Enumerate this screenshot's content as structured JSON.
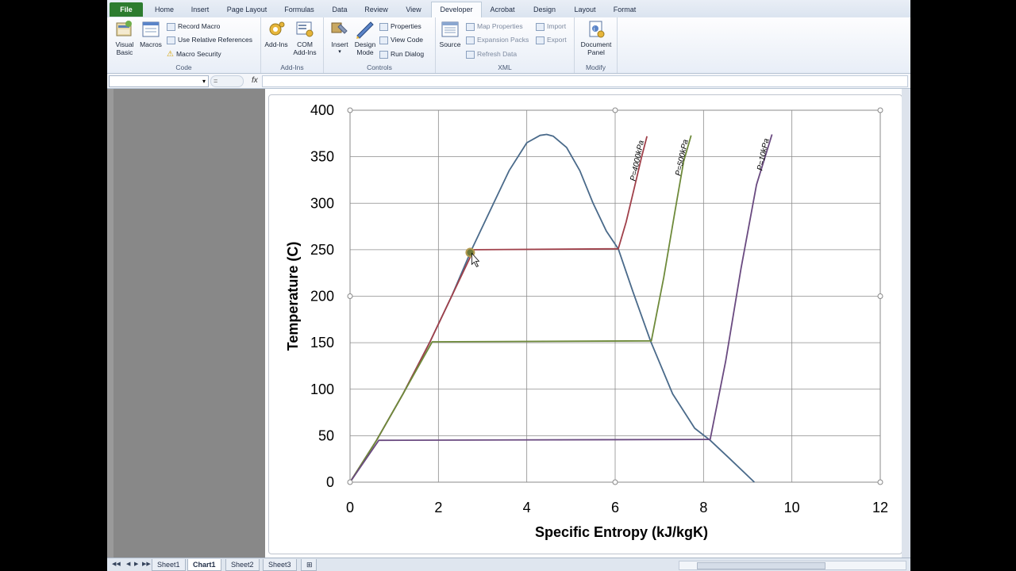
{
  "ribbon_tabs": [
    "File",
    "Home",
    "Insert",
    "Page Layout",
    "Formulas",
    "Data",
    "Review",
    "View",
    "Developer",
    "Acrobat",
    "Design",
    "Layout",
    "Format"
  ],
  "ribbon": {
    "code": {
      "label": "Code",
      "visual_basic": [
        "Visual",
        "Basic"
      ],
      "macros": "Macros",
      "record_macro": "Record Macro",
      "relative_refs": "Use Relative References",
      "macro_security": "Macro Security"
    },
    "addins": {
      "label": "Add-Ins",
      "addins_btn": "Add-Ins",
      "com_addins": [
        "COM",
        "Add-Ins"
      ]
    },
    "controls": {
      "label": "Controls",
      "insert": "Insert",
      "design_mode": [
        "Design",
        "Mode"
      ],
      "properties": "Properties",
      "view_code": "View Code",
      "run_dialog": "Run Dialog"
    },
    "xml": {
      "label": "XML",
      "source": "Source",
      "map_properties": "Map Properties",
      "expansion_packs": "Expansion Packs",
      "refresh_data": "Refresh Data",
      "import": "Import",
      "export": "Export"
    },
    "modify": {
      "label": "Modify",
      "document_panel": [
        "Document",
        "Panel"
      ]
    }
  },
  "formula_bar": {
    "name_box": "",
    "fx_oval": "=",
    "fx": "fx",
    "value": ""
  },
  "sheet_tabs": [
    "Sheet1",
    "Chart1",
    "Sheet2",
    "Sheet3"
  ],
  "active_sheet": "Chart1",
  "chart_data": {
    "type": "line",
    "title": "",
    "xlabel": "Specific Entropy (kJ/kgK)",
    "ylabel": "Temperature (C)",
    "xlim": [
      0,
      12
    ],
    "ylim": [
      0,
      400
    ],
    "xticks": [
      0,
      2,
      4,
      6,
      8,
      10,
      12
    ],
    "yticks": [
      0,
      50,
      100,
      150,
      200,
      250,
      300,
      350,
      400
    ],
    "grid": true,
    "series": [
      {
        "name": "",
        "color": "#4a6a8a",
        "x": [
          0,
          0.6,
          1.2,
          1.8,
          2.3,
          2.75,
          3.2,
          3.6,
          4.0,
          4.3,
          4.45,
          4.6,
          4.9,
          5.2,
          5.5,
          5.8,
          6.07,
          6.4,
          6.8,
          7.3,
          7.8,
          8.15,
          8.6,
          9.15
        ],
        "y": [
          0,
          45,
          95,
          150,
          200,
          250,
          295,
          335,
          365,
          373,
          374,
          372,
          360,
          335,
          300,
          270,
          251,
          205,
          152,
          95,
          58,
          45,
          25,
          0
        ]
      },
      {
        "name": "P=4000kPa",
        "color": "#a0404a",
        "x": [
          0,
          0.6,
          1.2,
          1.8,
          2.3,
          2.8,
          6.07,
          6.25,
          6.45,
          6.6,
          6.72
        ],
        "y": [
          0,
          45,
          95,
          150,
          200,
          250,
          251,
          280,
          320,
          350,
          372
        ]
      },
      {
        "name": "P=500kPa",
        "color": "#6e8a3a",
        "x": [
          0,
          0.6,
          1.2,
          1.86,
          6.82,
          7.1,
          7.35,
          7.55,
          7.72
        ],
        "y": [
          0,
          45,
          95,
          151,
          152,
          220,
          290,
          345,
          373
        ]
      },
      {
        "name": "P=10kPa",
        "color": "#6a4a80",
        "x": [
          0,
          0.65,
          8.15,
          8.5,
          8.85,
          9.2,
          9.55
        ],
        "y": [
          0,
          45,
          46,
          130,
          230,
          320,
          374
        ]
      }
    ]
  }
}
